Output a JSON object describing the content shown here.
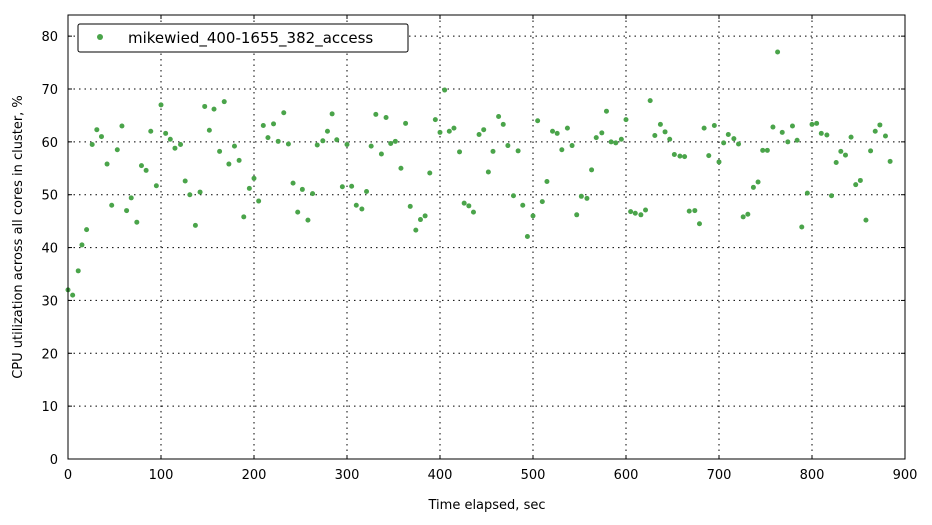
{
  "chart_data": {
    "type": "scatter",
    "title": "",
    "xlabel": "Time elapsed, sec",
    "ylabel": "CPU utilization across all cores in cluster, %",
    "xlim": [
      0,
      900
    ],
    "ylim": [
      0,
      84
    ],
    "xticks": [
      "0",
      "100",
      "200",
      "300",
      "400",
      "500",
      "600",
      "700",
      "800",
      "900"
    ],
    "yticks": [
      "0",
      "10",
      "20",
      "30",
      "40",
      "50",
      "60",
      "70",
      "80"
    ],
    "grid": true,
    "legend_position": "top-left",
    "series": [
      {
        "name": "mikewied_400-1655_382_access",
        "color": "#4aa44a",
        "points": [
          [
            0,
            32
          ],
          [
            5,
            31
          ],
          [
            11,
            35.6
          ],
          [
            15,
            40.5
          ],
          [
            20,
            43.4
          ],
          [
            26,
            59.5
          ],
          [
            31,
            62.3
          ],
          [
            36,
            61
          ],
          [
            42,
            55.8
          ],
          [
            47,
            48
          ],
          [
            53,
            58.5
          ],
          [
            58,
            63
          ],
          [
            63,
            47
          ],
          [
            68,
            49.4
          ],
          [
            74,
            44.8
          ],
          [
            79,
            55.5
          ],
          [
            84,
            54.6
          ],
          [
            89,
            62
          ],
          [
            95,
            51.7
          ],
          [
            100,
            67
          ],
          [
            105,
            61.6
          ],
          [
            110,
            60.5
          ],
          [
            115,
            58.8
          ],
          [
            121,
            59.5
          ],
          [
            126,
            52.6
          ],
          [
            131,
            50
          ],
          [
            137,
            44.2
          ],
          [
            142,
            50.5
          ],
          [
            147,
            66.7
          ],
          [
            152,
            62.2
          ],
          [
            157,
            66.2
          ],
          [
            163,
            58.2
          ],
          [
            168,
            67.6
          ],
          [
            173,
            55.8
          ],
          [
            179,
            59.2
          ],
          [
            184,
            56.5
          ],
          [
            189,
            45.8
          ],
          [
            195,
            51.2
          ],
          [
            200,
            53.1
          ],
          [
            205,
            48.8
          ],
          [
            210,
            63.1
          ],
          [
            215,
            60.8
          ],
          [
            221,
            63.4
          ],
          [
            226,
            60.1
          ],
          [
            232,
            65.5
          ],
          [
            237,
            59.6
          ],
          [
            242,
            52.2
          ],
          [
            247,
            46.7
          ],
          [
            252,
            51
          ],
          [
            258,
            45.2
          ],
          [
            263,
            50.2
          ],
          [
            268,
            59.4
          ],
          [
            274,
            60.2
          ],
          [
            279,
            62
          ],
          [
            284,
            65.3
          ],
          [
            289,
            60.4
          ],
          [
            295,
            51.5
          ],
          [
            300,
            59.5
          ],
          [
            305,
            51.6
          ],
          [
            310,
            48
          ],
          [
            316,
            47.3
          ],
          [
            321,
            50.6
          ],
          [
            326,
            59.2
          ],
          [
            331,
            65.2
          ],
          [
            337,
            57.7
          ],
          [
            342,
            64.6
          ],
          [
            347,
            59.7
          ],
          [
            352,
            60.1
          ],
          [
            358,
            55
          ],
          [
            363,
            63.5
          ],
          [
            368,
            47.8
          ],
          [
            374,
            43.3
          ],
          [
            379,
            45.3
          ],
          [
            384,
            46
          ],
          [
            389,
            54.1
          ],
          [
            395,
            64.2
          ],
          [
            400,
            61.8
          ],
          [
            405,
            69.8
          ],
          [
            410,
            62
          ],
          [
            415,
            62.6
          ],
          [
            421,
            58.1
          ],
          [
            426,
            48.4
          ],
          [
            431,
            47.9
          ],
          [
            436,
            46.7
          ],
          [
            442,
            61.4
          ],
          [
            447,
            62.3
          ],
          [
            452,
            54.3
          ],
          [
            457,
            58.2
          ],
          [
            463,
            64.8
          ],
          [
            468,
            63.3
          ],
          [
            473,
            59.3
          ],
          [
            479,
            49.8
          ],
          [
            484,
            58.3
          ],
          [
            489,
            48
          ],
          [
            494,
            42.1
          ],
          [
            500,
            46
          ],
          [
            505,
            64
          ],
          [
            510,
            48.7
          ],
          [
            515,
            52.5
          ],
          [
            521,
            62
          ],
          [
            526,
            61.6
          ],
          [
            531,
            58.5
          ],
          [
            537,
            62.6
          ],
          [
            542,
            59.3
          ],
          [
            547,
            46.2
          ],
          [
            552,
            49.7
          ],
          [
            558,
            49.3
          ],
          [
            563,
            54.7
          ],
          [
            568,
            60.8
          ],
          [
            574,
            61.7
          ],
          [
            579,
            65.8
          ],
          [
            584,
            60
          ],
          [
            589,
            59.8
          ],
          [
            595,
            60.5
          ],
          [
            600,
            64.2
          ],
          [
            605,
            46.8
          ],
          [
            610,
            46.5
          ],
          [
            616,
            46.2
          ],
          [
            621,
            47.1
          ],
          [
            626,
            67.8
          ],
          [
            631,
            61.2
          ],
          [
            637,
            63.3
          ],
          [
            642,
            61.9
          ],
          [
            647,
            60.5
          ],
          [
            652,
            57.6
          ],
          [
            658,
            57.3
          ],
          [
            663,
            57.2
          ],
          [
            668,
            46.9
          ],
          [
            674,
            47
          ],
          [
            679,
            44.5
          ],
          [
            684,
            62.6
          ],
          [
            689,
            57.4
          ],
          [
            695,
            63.1
          ],
          [
            700,
            56.2
          ],
          [
            705,
            59.8
          ],
          [
            710,
            61.4
          ],
          [
            716,
            60.6
          ],
          [
            721,
            59.6
          ],
          [
            726,
            45.8
          ],
          [
            731,
            46.3
          ],
          [
            737,
            51.4
          ],
          [
            742,
            52.4
          ],
          [
            747,
            58.4
          ],
          [
            752,
            58.4
          ],
          [
            758,
            62.8
          ],
          [
            763,
            77
          ],
          [
            768,
            61.8
          ],
          [
            774,
            60
          ],
          [
            779,
            63
          ],
          [
            784,
            60.3
          ],
          [
            789,
            43.9
          ],
          [
            795,
            50.3
          ],
          [
            800,
            63.3
          ],
          [
            805,
            63.5
          ],
          [
            810,
            61.6
          ],
          [
            816,
            61.3
          ],
          [
            821,
            49.8
          ],
          [
            826,
            56.1
          ],
          [
            831,
            58.2
          ],
          [
            836,
            57.5
          ],
          [
            842,
            60.9
          ],
          [
            847,
            51.9
          ],
          [
            852,
            52.7
          ],
          [
            858,
            45.2
          ],
          [
            863,
            58.3
          ],
          [
            868,
            62
          ],
          [
            873,
            63.2
          ],
          [
            879,
            61.1
          ],
          [
            884,
            56.3
          ]
        ]
      }
    ]
  }
}
